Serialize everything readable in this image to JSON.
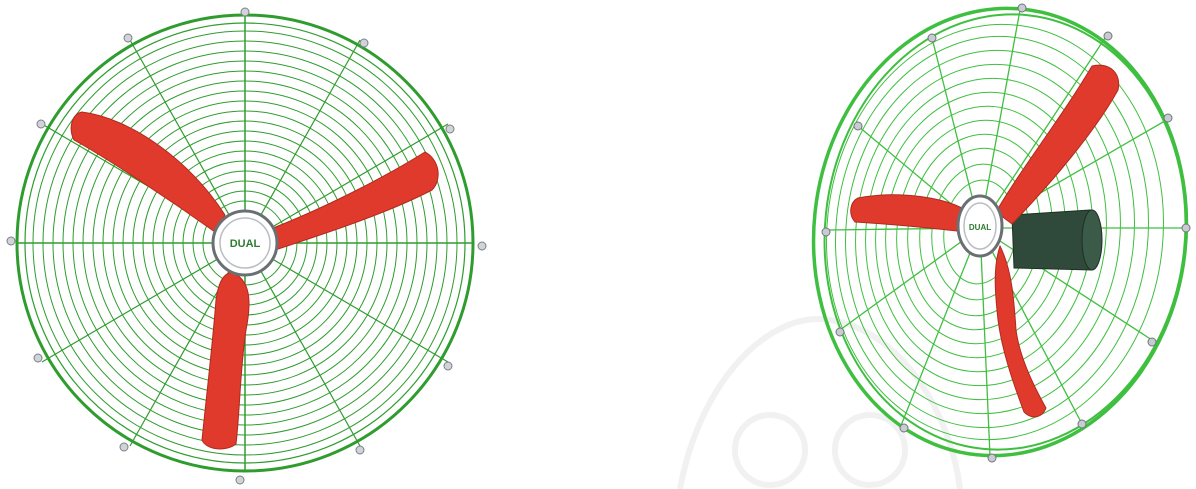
{
  "image": {
    "products": [
      {
        "view": "front",
        "logo_text": "DUAL",
        "colors": {
          "guard": "#2e9d2e",
          "blade": "#e03a2c",
          "hub": "#ffffff",
          "bolt": "#9aa0a6"
        }
      },
      {
        "view": "angled",
        "logo_text": "DUAL",
        "colors": {
          "guard": "#3fbf3f",
          "blade": "#e03a2c",
          "motor": "#2f4a3a",
          "hub": "#ffffff",
          "bolt": "#8a9096"
        }
      }
    ],
    "icons": [
      "fan-front-view",
      "fan-angled-view",
      "watermark-logo"
    ]
  }
}
